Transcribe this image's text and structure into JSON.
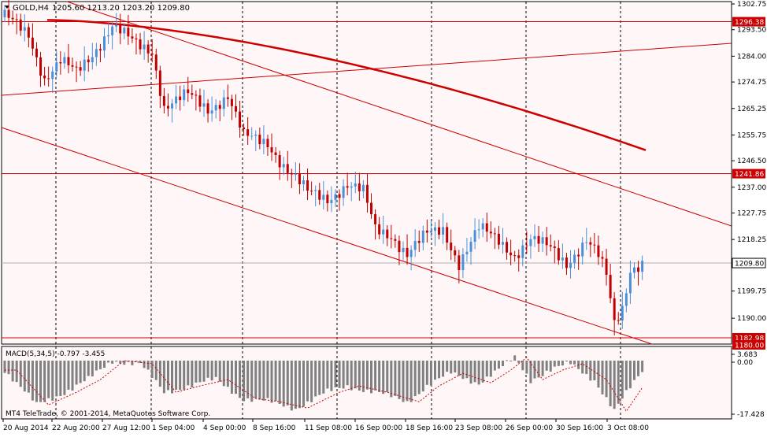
{
  "header": {
    "symbol_label": "GOLD,H4",
    "ohlc": "1205.60 1213.20 1203.20 1209.80"
  },
  "macd_panel": {
    "label": "MACD(5,34,5) -0.797 -3.455",
    "copyright": "MT4 TeleTrade, © 2001-2014, MetaQuotes Software Corp."
  },
  "colors": {
    "background": "#fff7f7",
    "frame": "#000000",
    "bull_candle": "#4a90d9",
    "bear_candle": "#c00000",
    "trend_line": "#cc0000",
    "moving_average": "#cc0000",
    "macd_histogram": "#808080",
    "macd_signal": "#cc0000",
    "current_price_line": "#b0b0b0",
    "price_tag_bg": "#cc0000"
  },
  "price_axis": {
    "ticks": [
      "1302.75",
      "1293.50",
      "1284.00",
      "1274.75",
      "1265.25",
      "1255.75",
      "1246.50",
      "1237.00",
      "1227.75",
      "1218.25",
      "1199.75",
      "1190.00"
    ],
    "current_price": "1209.80",
    "red_tags": [
      "1296.38",
      "1241.86",
      "1182.98",
      "1180.00"
    ]
  },
  "macd_axis": {
    "ticks": [
      "3.683",
      "0.00",
      "-17.428"
    ]
  },
  "time_axis": {
    "labels": [
      "20 Aug 2014",
      "22 Aug 20:00",
      "27 Aug 12:00",
      "1 Sep 04:00",
      "4 Sep 00:00",
      "8 Sep 16:00",
      "11 Sep 08:00",
      "16 Sep 00:00",
      "18 Sep 16:00",
      "23 Sep 08:00",
      "26 Sep 00:00",
      "30 Sep 16:00",
      "3 Oct 08:00"
    ]
  },
  "chart_data": {
    "type": "candlestick",
    "symbol": "GOLD",
    "timeframe": "H4",
    "ylim": [
      1178,
      1305
    ],
    "horizontal_levels": [
      1296.38,
      1241.86,
      1182.98
    ],
    "current_price": 1209.8,
    "price_anchors": [
      [
        0,
        1298
      ],
      [
        6,
        1292
      ],
      [
        10,
        1276
      ],
      [
        14,
        1282
      ],
      [
        18,
        1278
      ],
      [
        22,
        1285
      ],
      [
        27,
        1295
      ],
      [
        33,
        1288
      ],
      [
        37,
        1286
      ],
      [
        40,
        1266
      ],
      [
        46,
        1270
      ],
      [
        51,
        1265
      ],
      [
        56,
        1270
      ],
      [
        60,
        1255
      ],
      [
        66,
        1253
      ],
      [
        70,
        1245
      ],
      [
        76,
        1235
      ],
      [
        81,
        1233
      ],
      [
        86,
        1238
      ],
      [
        90,
        1235
      ],
      [
        93,
        1222
      ],
      [
        97,
        1220
      ],
      [
        101,
        1213
      ],
      [
        106,
        1220
      ],
      [
        110,
        1222
      ],
      [
        114,
        1210
      ],
      [
        119,
        1222
      ],
      [
        124,
        1218
      ],
      [
        128,
        1213
      ],
      [
        132,
        1218
      ],
      [
        137,
        1215
      ],
      [
        141,
        1210
      ],
      [
        146,
        1218
      ],
      [
        149,
        1212
      ],
      [
        151,
        1205
      ],
      [
        153,
        1188
      ],
      [
        155,
        1194
      ],
      [
        157,
        1208
      ],
      [
        160,
        1209.8
      ]
    ],
    "macd_anchors": [
      [
        0,
        -3
      ],
      [
        8,
        -14
      ],
      [
        15,
        -10
      ],
      [
        21,
        -6
      ],
      [
        27,
        0
      ],
      [
        34,
        -1
      ],
      [
        40,
        -10
      ],
      [
        46,
        -8
      ],
      [
        53,
        -6
      ],
      [
        60,
        -12
      ],
      [
        66,
        -13
      ],
      [
        73,
        -15
      ],
      [
        81,
        -10
      ],
      [
        86,
        -8
      ],
      [
        93,
        -10
      ],
      [
        101,
        -13
      ],
      [
        106,
        -8
      ],
      [
        112,
        -4
      ],
      [
        119,
        -7
      ],
      [
        124,
        -3
      ],
      [
        128,
        1
      ],
      [
        132,
        -6
      ],
      [
        137,
        -3
      ],
      [
        142,
        -1
      ],
      [
        148,
        -6
      ],
      [
        153,
        -16
      ],
      [
        160,
        -3
      ]
    ],
    "macd_ylim": [
      -17.428,
      3.683
    ]
  }
}
